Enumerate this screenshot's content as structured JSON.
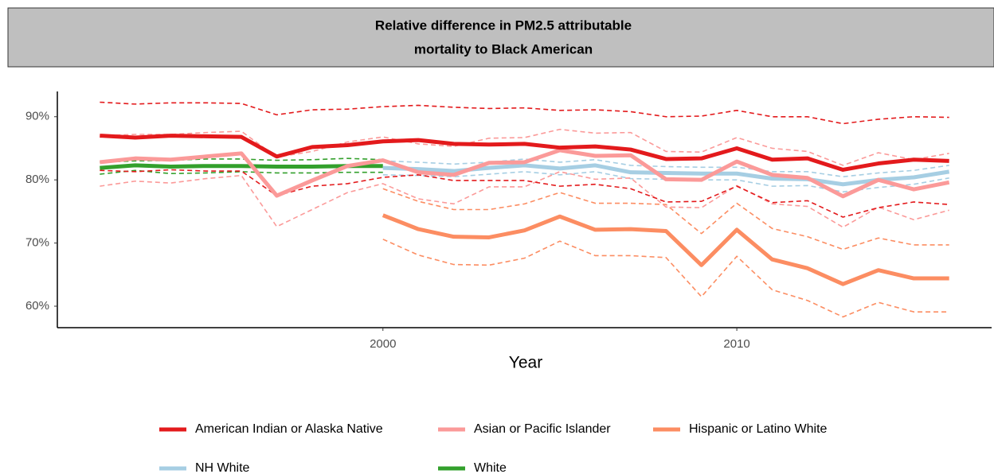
{
  "chart_data": {
    "type": "line",
    "title": [
      "Relative difference in PM2.5 attributable",
      "mortality to Black American"
    ],
    "x_label": "Year",
    "x": [
      1992,
      1993,
      1994,
      1995,
      1996,
      1997,
      1998,
      1999,
      2000,
      2001,
      2002,
      2003,
      2004,
      2005,
      2006,
      2007,
      2008,
      2009,
      2010,
      2011,
      2012,
      2013,
      2014,
      2015,
      2016
    ],
    "xlim": [
      1990.8,
      2017.2
    ],
    "xticks": [
      2000,
      2010
    ],
    "ylim": [
      56.6,
      94
    ],
    "yticks": [
      {
        "value": 60,
        "label": "60%"
      },
      {
        "value": 70,
        "label": "70%"
      },
      {
        "value": 80,
        "label": "80%"
      },
      {
        "value": 90,
        "label": "90%"
      }
    ],
    "grid": false,
    "legend": "bottom",
    "series": [
      {
        "name": "White",
        "color": "#33a02c",
        "values": [
          81.9,
          82.3,
          82.1,
          82.2,
          82.2,
          82.1,
          82.1,
          82.2,
          82.2,
          null,
          null,
          null,
          null,
          null,
          null,
          null,
          null,
          null,
          null,
          null,
          null,
          null,
          null,
          null,
          null
        ],
        "lower": [
          80.9,
          81.5,
          81.0,
          81.1,
          81.3,
          81.1,
          81.1,
          81.2,
          81.2,
          null,
          null,
          null,
          null,
          null,
          null,
          null,
          null,
          null,
          null,
          null,
          null,
          null,
          null,
          null,
          null
        ],
        "upper": [
          82.8,
          83.0,
          83.1,
          83.3,
          83.3,
          83.1,
          83.2,
          83.4,
          83.2,
          null,
          null,
          null,
          null,
          null,
          null,
          null,
          null,
          null,
          null,
          null,
          null,
          null,
          null,
          null,
          null
        ]
      },
      {
        "name": "NH White",
        "color": "#a6cee3",
        "values": [
          null,
          null,
          null,
          null,
          null,
          null,
          null,
          null,
          81.9,
          81.7,
          81.4,
          81.9,
          82.3,
          81.8,
          82.3,
          81.2,
          81.1,
          81.0,
          81.0,
          80.2,
          80.1,
          79.3,
          80.0,
          80.4,
          81.3
        ],
        "lower": [
          null,
          null,
          null,
          null,
          null,
          null,
          null,
          null,
          80.8,
          80.7,
          80.5,
          80.9,
          81.3,
          80.8,
          81.3,
          80.2,
          80.1,
          80.0,
          80.0,
          79.0,
          79.1,
          78.1,
          78.8,
          79.3,
          80.3
        ],
        "upper": [
          null,
          null,
          null,
          null,
          null,
          null,
          null,
          null,
          83.0,
          82.8,
          82.5,
          82.8,
          83.3,
          82.8,
          83.2,
          82.3,
          82.1,
          82.0,
          82.0,
          81.3,
          81.3,
          80.5,
          81.1,
          81.5,
          82.3
        ]
      },
      {
        "name": "Hispanic or Latino White",
        "color": "#fc8d62",
        "values": [
          null,
          null,
          null,
          null,
          null,
          null,
          null,
          null,
          74.4,
          72.2,
          71.0,
          70.9,
          72.0,
          74.2,
          72.1,
          72.2,
          71.9,
          66.5,
          72.1,
          67.4,
          66.0,
          63.5,
          65.7,
          64.4,
          64.4
        ],
        "lower": [
          null,
          null,
          null,
          null,
          null,
          null,
          null,
          null,
          70.6,
          68.1,
          66.6,
          66.5,
          67.6,
          70.3,
          68.0,
          68.0,
          67.7,
          61.5,
          67.9,
          62.6,
          60.9,
          58.3,
          60.6,
          59.1,
          59.1
        ],
        "upper": [
          null,
          null,
          null,
          null,
          null,
          null,
          null,
          null,
          78.6,
          76.6,
          75.3,
          75.3,
          76.2,
          78.0,
          76.3,
          76.3,
          76.1,
          71.5,
          76.3,
          72.3,
          71.0,
          69.0,
          70.8,
          69.7,
          69.7
        ]
      },
      {
        "name": "Asian or Pacific Islander",
        "color": "#fb9a99",
        "values": [
          82.8,
          83.4,
          83.2,
          83.7,
          84.2,
          77.5,
          79.9,
          82.2,
          83.1,
          81.2,
          80.8,
          82.7,
          82.8,
          84.7,
          83.8,
          83.9,
          80.1,
          80.0,
          82.9,
          80.8,
          80.3,
          77.4,
          80.0,
          78.5,
          79.6
        ],
        "lower": [
          79.0,
          79.8,
          79.5,
          80.2,
          80.7,
          72.6,
          75.3,
          78.0,
          79.4,
          77.0,
          76.2,
          78.9,
          78.9,
          81.3,
          80.1,
          80.3,
          75.7,
          75.6,
          79.1,
          76.2,
          75.8,
          72.5,
          75.7,
          73.7,
          75.2
        ],
        "upper": [
          87.0,
          87.2,
          87.2,
          87.5,
          87.7,
          83.6,
          84.5,
          86.0,
          86.8,
          85.7,
          85.3,
          86.6,
          86.7,
          88.0,
          87.4,
          87.5,
          84.5,
          84.4,
          86.7,
          85.0,
          84.5,
          82.3,
          84.3,
          83.2,
          84.2
        ]
      },
      {
        "name": "American Indian or Alaska Native",
        "color": "#e31a1c",
        "values": [
          87.0,
          86.7,
          87.0,
          86.9,
          86.8,
          83.7,
          85.2,
          85.5,
          86.1,
          86.3,
          85.7,
          85.6,
          85.7,
          85.1,
          85.3,
          84.8,
          83.3,
          83.4,
          85.0,
          83.2,
          83.4,
          81.6,
          82.6,
          83.2,
          83.0
        ],
        "lower": [
          81.5,
          81.3,
          81.6,
          81.4,
          81.4,
          77.5,
          79.0,
          79.4,
          80.4,
          80.8,
          79.9,
          79.9,
          79.9,
          79.0,
          79.3,
          78.6,
          76.5,
          76.6,
          79.0,
          76.4,
          76.7,
          74.1,
          75.6,
          76.5,
          76.1
        ],
        "upper": [
          92.3,
          92.0,
          92.2,
          92.2,
          92.1,
          90.3,
          91.1,
          91.2,
          91.6,
          91.8,
          91.5,
          91.3,
          91.4,
          91.0,
          91.1,
          90.8,
          90.0,
          90.1,
          91.0,
          90.0,
          90.0,
          88.9,
          89.6,
          90.0,
          89.9
        ]
      }
    ],
    "legend_order": [
      4,
      3,
      2,
      1,
      0
    ]
  }
}
